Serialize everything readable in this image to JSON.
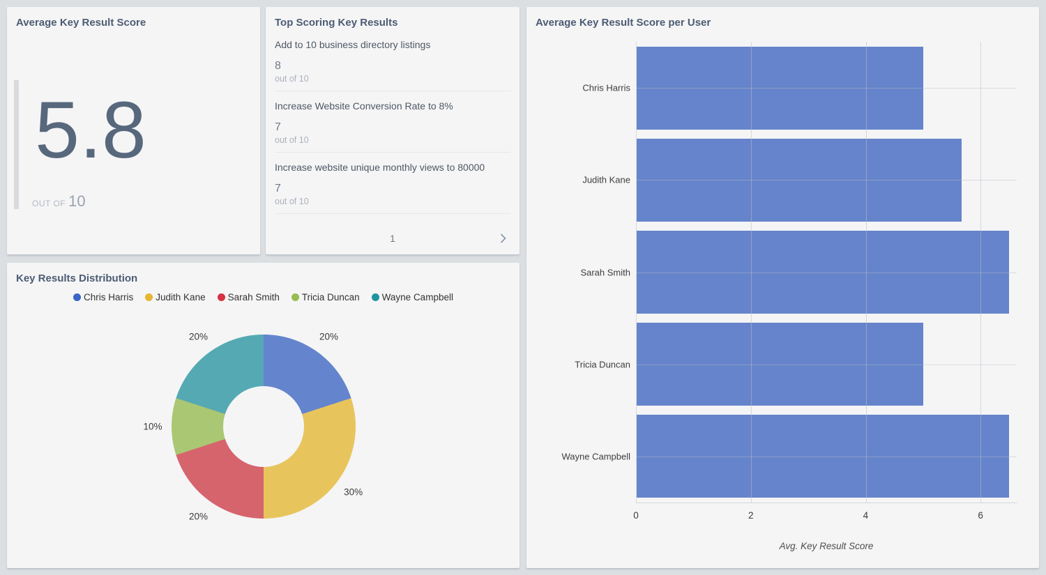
{
  "cards": {
    "average_score": {
      "title": "Average Key Result Score",
      "value": "5.8",
      "out_of_label": "OUT OF",
      "out_of_value": "10"
    },
    "top_results": {
      "title": "Top Scoring Key Results",
      "items": [
        {
          "name": "Add to 10 business directory listings",
          "score": "8",
          "out_of": "out of 10"
        },
        {
          "name": "Increase Website Conversion Rate to 8%",
          "score": "7",
          "out_of": "out of 10"
        },
        {
          "name": "Increase website unique monthly views to 80000",
          "score": "7",
          "out_of": "out of 10"
        }
      ],
      "page": "1"
    }
  },
  "chart_data": [
    {
      "type": "pie",
      "title": "Key Results Distribution",
      "donut": true,
      "legend_position": "top",
      "labels": [
        "Chris Harris",
        "Judith Kane",
        "Sarah Smith",
        "Tricia Duncan",
        "Wayne Campbell"
      ],
      "values": [
        20,
        30,
        20,
        10,
        20
      ],
      "value_labels": [
        "20%",
        "30%",
        "20%",
        "10%",
        "20%"
      ],
      "legend_colors": [
        "#3c64c8",
        "#e8b52f",
        "#d63241",
        "#96bd4e",
        "#1f939f"
      ],
      "slice_colors": [
        "#6485cd",
        "#e8c45c",
        "#d6646d",
        "#aac773",
        "#55a9b3"
      ]
    },
    {
      "type": "bar",
      "orientation": "horizontal",
      "title": "Average Key Result Score per User",
      "categories": [
        "Chris Harris",
        "Judith Kane",
        "Sarah Smith",
        "Tricia Duncan",
        "Wayne Campbell"
      ],
      "values": [
        5.0,
        5.67,
        6.5,
        5.0,
        6.5
      ],
      "xlabel": "Avg. Key Result Score",
      "xlim": [
        0,
        6.63
      ],
      "xticks": [
        0,
        2,
        4,
        6
      ],
      "bar_color": "#6584cb",
      "grid": true
    }
  ],
  "colors": {
    "page_background": "#dbdfe2",
    "card_background": "#f5f5f6",
    "title_text": "#4c5c73",
    "accent_blue": "#6584cb"
  }
}
